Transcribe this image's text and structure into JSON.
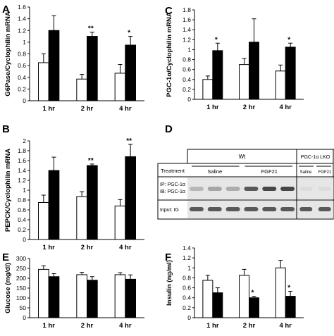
{
  "colors": {
    "control_bar": "#ffffff",
    "treated_bar": "#000000",
    "axis": "#000000",
    "blot_bg": "#e6e6e6",
    "blot_band": "#2a2a2a"
  },
  "chart_data": [
    {
      "panel_letter": "A",
      "type": "bar",
      "ylabel": "G6Pase/Cyclophilin mRNA",
      "categories": [
        "1 hr",
        "2 hr",
        "4 hr"
      ],
      "ylim": [
        0,
        1.6
      ],
      "yticks": [
        "0",
        "0.2",
        "0.4",
        "0.6",
        "0.8",
        "1",
        "1.2",
        "1.4",
        "1.6"
      ],
      "series": [
        {
          "values": [
            0.65,
            0.37,
            0.47
          ],
          "errors": [
            0.15,
            0.08,
            0.15
          ]
        },
        {
          "values": [
            1.2,
            1.1,
            0.95
          ],
          "errors": [
            0.25,
            0.07,
            0.15
          ]
        }
      ],
      "significance": [
        "",
        "**",
        "*"
      ]
    },
    {
      "panel_letter": "C",
      "type": "bar",
      "ylabel": "PGC-1α/Cyclophilin mRNA",
      "categories": [
        "1 hr",
        "2 hr",
        "4 hr"
      ],
      "ylim": [
        0,
        1.8
      ],
      "yticks": [
        "0",
        "0.2",
        "0.4",
        "0.6",
        "0.8",
        "1",
        "1.2",
        "1.4",
        "1.6",
        "1.8"
      ],
      "series": [
        {
          "values": [
            0.4,
            0.7,
            0.57
          ],
          "errors": [
            0.07,
            0.12,
            0.12
          ]
        },
        {
          "values": [
            0.98,
            1.15,
            1.05
          ],
          "errors": [
            0.15,
            0.47,
            0.08
          ]
        }
      ],
      "significance": [
        "*",
        "",
        "*"
      ]
    },
    {
      "panel_letter": "B",
      "type": "bar",
      "ylabel": "PEPCK/Cyclophilin mRNA",
      "categories": [
        "1 hr",
        "2 hr",
        "4 hr"
      ],
      "ylim": [
        0,
        2.0
      ],
      "yticks": [
        "0",
        "0.2",
        "0.4",
        "0.6",
        "0.8",
        "1",
        "1.2",
        "1.4",
        "1.6",
        "1.8",
        "2"
      ],
      "series": [
        {
          "values": [
            0.75,
            0.87,
            0.68
          ],
          "errors": [
            0.15,
            0.1,
            0.13
          ]
        },
        {
          "values": [
            1.4,
            1.5,
            1.68
          ],
          "errors": [
            0.27,
            0.03,
            0.25
          ]
        }
      ],
      "significance": [
        "",
        "**",
        "**"
      ]
    },
    {
      "panel_letter": "E",
      "type": "bar",
      "ylabel": "Glucose (mg/dl)",
      "categories": [
        "1 hr",
        "2 hr",
        "4 hr"
      ],
      "ylim": [
        0,
        300
      ],
      "yticks": [
        "0",
        "50",
        "100",
        "150",
        "200",
        "250",
        "300"
      ],
      "series": [
        {
          "values": [
            245,
            218,
            218
          ],
          "errors": [
            18,
            12,
            10
          ]
        },
        {
          "values": [
            208,
            190,
            195
          ],
          "errors": [
            15,
            18,
            22
          ]
        }
      ],
      "significance": [
        "",
        "",
        ""
      ]
    },
    {
      "panel_letter": "F",
      "type": "bar",
      "ylabel": "Insulin (ng/ml)",
      "categories": [
        "1 hr",
        "2 hr",
        "4 hr"
      ],
      "ylim": [
        0,
        1.4
      ],
      "yticks": [
        "0",
        "0.2",
        "0.4",
        "0.6",
        "0.8",
        "1",
        "1.2",
        "1.4"
      ],
      "series": [
        {
          "values": [
            0.75,
            0.85,
            1.0
          ],
          "errors": [
            0.1,
            0.12,
            0.15
          ]
        },
        {
          "values": [
            0.5,
            0.4,
            0.43
          ],
          "errors": [
            0.1,
            0.03,
            0.1
          ]
        }
      ],
      "significance": [
        "",
        "*",
        "*"
      ]
    }
  ],
  "blot": {
    "panel_letter": "D",
    "wt_label": "Wt",
    "lko_label": "PGC-1α LKO",
    "treatment_label": "Treatment",
    "saline_label": "Saline",
    "fgf21_label": "FGF21",
    "lko_saline_label": "Saline",
    "lko_fgf21_label": "FGF21",
    "ip_label": "IP: PGC-1α",
    "ib_label": "IB: PGC-1α",
    "input_label": "Input: IG",
    "pgc_band_intensity": [
      0.25,
      0.35,
      0.3,
      0.75,
      0.85,
      0.85,
      0.05,
      0.05
    ],
    "input_band_intensity": [
      0.75,
      0.75,
      0.75,
      0.75,
      0.75,
      0.75,
      0.75,
      0.75
    ]
  }
}
